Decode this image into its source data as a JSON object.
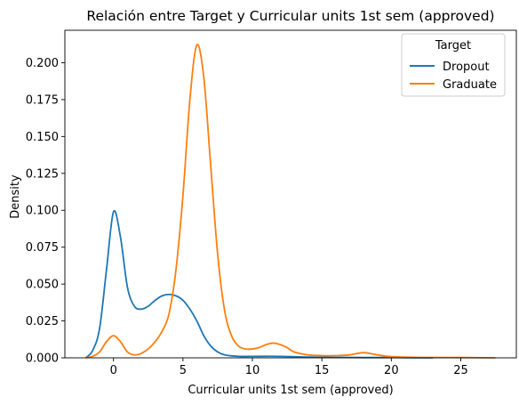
{
  "chart_data": {
    "type": "line",
    "title": "Relación entre Target y Curricular units 1st sem (approved)",
    "xlabel": "Curricular units 1st sem (approved)",
    "ylabel": "Density",
    "xlim": [
      -3.5,
      29
    ],
    "ylim": [
      0,
      0.222
    ],
    "x_ticks": [
      0,
      5,
      10,
      15,
      20,
      25
    ],
    "y_ticks": [
      0.0,
      0.025,
      0.05,
      0.075,
      0.1,
      0.125,
      0.15,
      0.175,
      0.2
    ],
    "x_tick_labels": [
      "0",
      "5",
      "10",
      "15",
      "20",
      "25"
    ],
    "y_tick_labels": [
      "0.000",
      "0.025",
      "0.050",
      "0.075",
      "0.100",
      "0.125",
      "0.150",
      "0.175",
      "0.200"
    ],
    "grid": false,
    "legend": {
      "title": "Target",
      "position": "top-right"
    },
    "series": [
      {
        "name": "Dropout",
        "color": "#1f77b4",
        "points": [
          [
            -2.0,
            0.0
          ],
          [
            -1.5,
            0.005
          ],
          [
            -1.0,
            0.02
          ],
          [
            -0.5,
            0.06
          ],
          [
            0.0,
            0.099
          ],
          [
            0.5,
            0.082
          ],
          [
            1.0,
            0.048
          ],
          [
            1.5,
            0.035
          ],
          [
            2.0,
            0.033
          ],
          [
            2.5,
            0.035
          ],
          [
            3.0,
            0.039
          ],
          [
            3.5,
            0.042
          ],
          [
            4.0,
            0.043
          ],
          [
            4.5,
            0.042
          ],
          [
            5.0,
            0.039
          ],
          [
            5.5,
            0.033
          ],
          [
            6.0,
            0.025
          ],
          [
            6.5,
            0.015
          ],
          [
            7.0,
            0.008
          ],
          [
            7.5,
            0.004
          ],
          [
            8.0,
            0.002
          ],
          [
            9.0,
            0.001
          ],
          [
            10.0,
            0.001
          ],
          [
            12.0,
            0.001
          ],
          [
            14.0,
            0.0005
          ],
          [
            16.0,
            0.0003
          ],
          [
            18.0,
            0.0002
          ],
          [
            20.0,
            0.0002
          ],
          [
            21.0,
            0.0001
          ],
          [
            23.0,
            0.0
          ]
        ]
      },
      {
        "name": "Graduate",
        "color": "#ff7f0e",
        "points": [
          [
            -2.0,
            0.0
          ],
          [
            -1.5,
            0.001
          ],
          [
            -1.0,
            0.004
          ],
          [
            -0.5,
            0.011
          ],
          [
            0.0,
            0.015
          ],
          [
            0.5,
            0.011
          ],
          [
            1.0,
            0.004
          ],
          [
            1.5,
            0.002
          ],
          [
            2.0,
            0.003
          ],
          [
            2.5,
            0.006
          ],
          [
            3.0,
            0.011
          ],
          [
            3.5,
            0.018
          ],
          [
            4.0,
            0.03
          ],
          [
            4.5,
            0.06
          ],
          [
            5.0,
            0.11
          ],
          [
            5.5,
            0.175
          ],
          [
            6.0,
            0.212
          ],
          [
            6.5,
            0.19
          ],
          [
            7.0,
            0.13
          ],
          [
            7.5,
            0.07
          ],
          [
            8.0,
            0.032
          ],
          [
            8.5,
            0.015
          ],
          [
            9.0,
            0.008
          ],
          [
            9.5,
            0.006
          ],
          [
            10.0,
            0.006
          ],
          [
            10.5,
            0.007
          ],
          [
            11.0,
            0.009
          ],
          [
            11.5,
            0.01
          ],
          [
            12.0,
            0.009
          ],
          [
            12.5,
            0.007
          ],
          [
            13.0,
            0.004
          ],
          [
            14.0,
            0.002
          ],
          [
            15.0,
            0.0015
          ],
          [
            16.0,
            0.0015
          ],
          [
            17.0,
            0.002
          ],
          [
            18.0,
            0.0035
          ],
          [
            19.0,
            0.002
          ],
          [
            20.0,
            0.0008
          ],
          [
            22.0,
            0.0003
          ],
          [
            25.0,
            0.0002
          ],
          [
            27.5,
            0.0
          ]
        ]
      }
    ]
  }
}
